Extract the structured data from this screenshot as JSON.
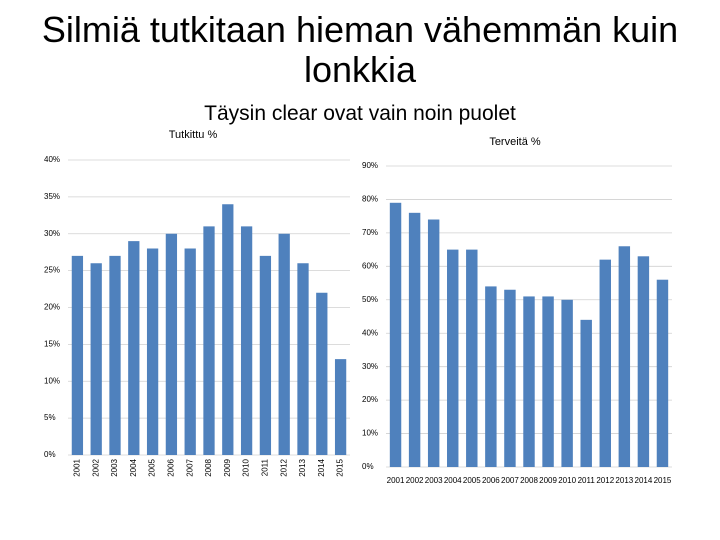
{
  "title": "Silmiä tutkitaan hieman vähemmän kuin lonkkia",
  "subtitle": "Täysin clear ovat vain noin puolet",
  "chart_data": [
    {
      "type": "bar",
      "title": "Tutkittu %",
      "categories": [
        "2001",
        "2002",
        "2003",
        "2004",
        "2005",
        "2006",
        "2007",
        "2008",
        "2009",
        "2010",
        "2011",
        "2012",
        "2013",
        "2014",
        "2015"
      ],
      "values": [
        27,
        26,
        27,
        29,
        28,
        30,
        28,
        31,
        34,
        31,
        27,
        30,
        26,
        22,
        13
      ],
      "color": "#4f81bd",
      "ylim": [
        0,
        40
      ],
      "yticks": [
        {
          "value": 0,
          "label": "0%"
        },
        {
          "value": 5,
          "label": "5%"
        },
        {
          "value": 10,
          "label": "10%"
        },
        {
          "value": 15,
          "label": "15%"
        },
        {
          "value": 20,
          "label": "20%"
        },
        {
          "value": 25,
          "label": "25%"
        },
        {
          "value": 30,
          "label": "30%"
        },
        {
          "value": 35,
          "label": "35%"
        },
        {
          "value": 40,
          "label": "40%"
        }
      ],
      "grid": true
    },
    {
      "type": "bar",
      "title": "Terveitä %",
      "categories": [
        "2001",
        "2002",
        "2003",
        "2004",
        "2005",
        "2006",
        "2007",
        "2008",
        "2009",
        "2010",
        "2011",
        "2012",
        "2013",
        "2014",
        "2015"
      ],
      "values": [
        79,
        76,
        74,
        65,
        65,
        54,
        53,
        51,
        51,
        50,
        44,
        62,
        66,
        63,
        56
      ],
      "color": "#4f81bd",
      "ylim": [
        0,
        90
      ],
      "yticks": [
        {
          "value": 0,
          "label": "0%"
        },
        {
          "value": 10,
          "label": "10%"
        },
        {
          "value": 20,
          "label": "20%"
        },
        {
          "value": 30,
          "label": "30%"
        },
        {
          "value": 40,
          "label": "40%"
        },
        {
          "value": 50,
          "label": "50%"
        },
        {
          "value": 60,
          "label": "60%"
        },
        {
          "value": 70,
          "label": "70%"
        },
        {
          "value": 80,
          "label": "80%"
        },
        {
          "value": 90,
          "label": "90%"
        }
      ],
      "grid": true
    }
  ]
}
